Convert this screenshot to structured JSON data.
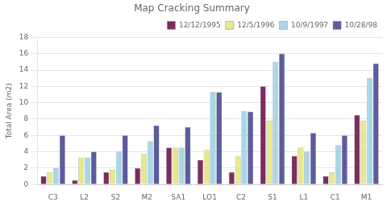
{
  "chart_data": {
    "type": "bar",
    "title": "Map Cracking Summary",
    "ylabel": "Total Area (m2)",
    "categories": [
      "C3",
      "L2",
      "S2",
      "M2",
      "SA1",
      "LO1",
      "C2",
      "S1",
      "L1",
      "C1",
      "M1"
    ],
    "series": [
      {
        "name": "12/12/1995",
        "color": "#7B2D5E",
        "values": [
          1,
          0.5,
          1.5,
          2,
          4.5,
          3,
          1.5,
          12,
          3.5,
          1,
          8.5
        ]
      },
      {
        "name": "12/5/1996",
        "color": "#E8E88A",
        "values": [
          1.5,
          3.3,
          1.8,
          3.7,
          4.5,
          4.2,
          3.5,
          7.8,
          4.5,
          1.5,
          7.8
        ]
      },
      {
        "name": "10/9/1997",
        "color": "#A8D8E8",
        "values": [
          2,
          3.3,
          4,
          5.3,
          4.5,
          11.3,
          9,
          15,
          4,
          4.8,
          13
        ]
      },
      {
        "name": "10/28/98",
        "color": "#5B5B9E",
        "values": [
          6,
          4,
          6,
          7.2,
          7,
          11.3,
          8.9,
          16,
          6.3,
          6,
          14.8
        ]
      }
    ],
    "ylim": [
      0,
      18
    ],
    "yticks": [
      0,
      2,
      4,
      6,
      8,
      10,
      12,
      14,
      16,
      18
    ],
    "grid": true,
    "legend": "upper right"
  }
}
